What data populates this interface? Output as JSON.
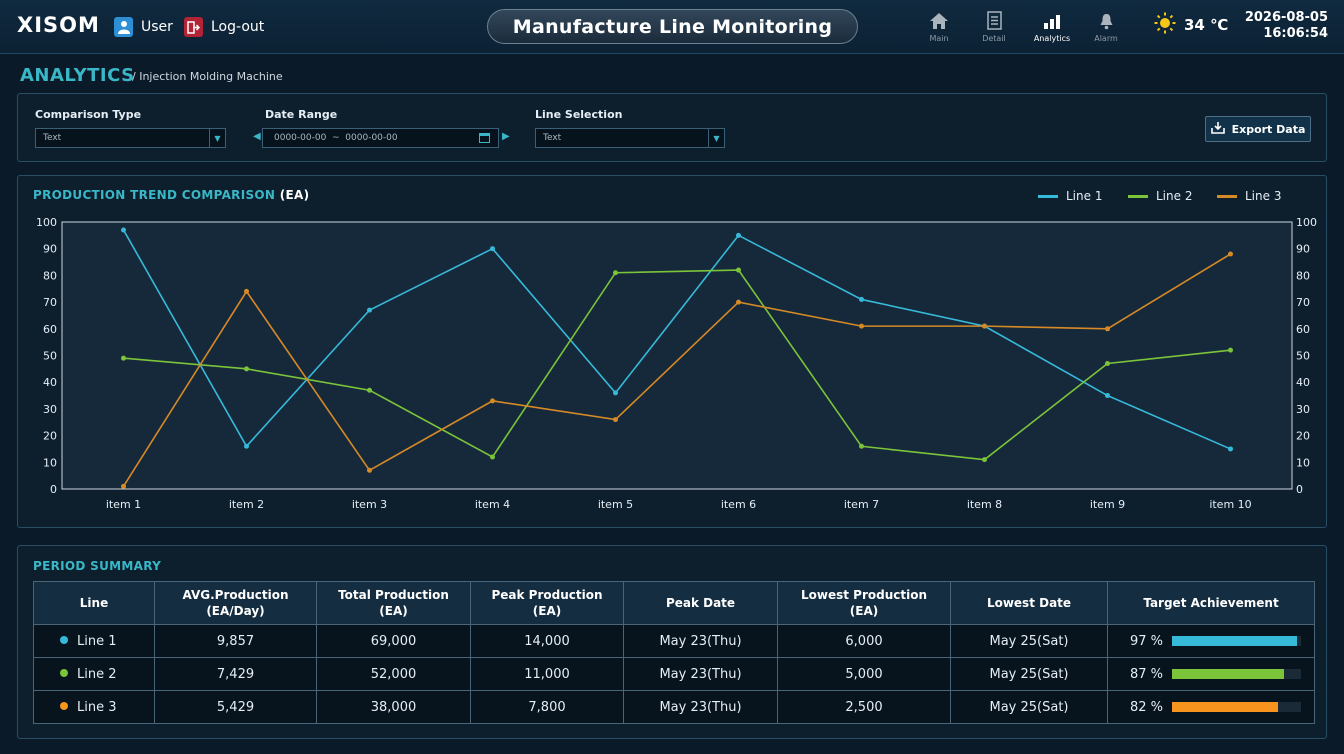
{
  "header": {
    "logo": "XISOM",
    "user_label": "User",
    "logout_label": "Log-out",
    "title": "Manufacture Line Monitoring",
    "nav": [
      {
        "label": "Main",
        "icon": "home-icon",
        "active": false
      },
      {
        "label": "Detail",
        "icon": "document-icon",
        "active": false
      },
      {
        "label": "Analytics",
        "icon": "bar-chart-icon",
        "active": true
      },
      {
        "label": "Alarm",
        "icon": "bell-icon",
        "active": false
      }
    ],
    "weather": {
      "icon": "sun-icon",
      "temperature": "34 ℃"
    },
    "date": "2026-08-05",
    "time": "16:06:54"
  },
  "page": {
    "title": "ANALYTICS",
    "subtitle": "/ Injection Molding Machine"
  },
  "filters": {
    "comparison_type": {
      "label": "Comparison Type",
      "value": "Text"
    },
    "date_range": {
      "label": "Date Range",
      "value": "0000-00-00  ~  0000-00-00"
    },
    "line_selection": {
      "label": "Line Selection",
      "value": "Text"
    },
    "export_label": "Export Data"
  },
  "trend": {
    "title": "PRODUCTION TREND COMPARISON",
    "unit": "(EA)"
  },
  "chart_data": {
    "type": "line",
    "title": "PRODUCTION TREND COMPARISON (EA)",
    "categories": [
      "item 1",
      "item 2",
      "item 3",
      "item 4",
      "item 5",
      "item 6",
      "item 7",
      "item 8",
      "item 9",
      "item 10"
    ],
    "ylim": [
      0,
      100
    ],
    "yticks": [
      0,
      10,
      20,
      30,
      40,
      50,
      60,
      70,
      80,
      90,
      100
    ],
    "y2ticks": [
      0,
      10,
      20,
      30,
      40,
      50,
      60,
      70,
      80,
      90,
      100
    ],
    "grid": false,
    "legend_position": "top-right",
    "series": [
      {
        "name": "Line 1",
        "color": "#37b9da",
        "values": [
          97,
          16,
          67,
          90,
          36,
          95,
          71,
          61,
          35,
          15
        ]
      },
      {
        "name": "Line 2",
        "color": "#7cc43a",
        "values": [
          49,
          45,
          37,
          12,
          81,
          82,
          16,
          11,
          47,
          52
        ]
      },
      {
        "name": "Line 3",
        "color": "#d68a26",
        "values": [
          1,
          74,
          7,
          33,
          26,
          70,
          61,
          61,
          60,
          88
        ]
      }
    ]
  },
  "summary": {
    "title": "PERIOD SUMMARY",
    "columns": [
      "Line",
      "AVG.Production\n(EA/Day)",
      "Total Production\n(EA)",
      "Peak Production\n(EA)",
      "Peak Date",
      "Lowest Production\n(EA)",
      "Lowest Date",
      "Target Achievement"
    ],
    "rows": [
      {
        "line": "Line 1",
        "color": "#37b9da",
        "avg": "9,857",
        "total": "69,000",
        "peak": "14,000",
        "peak_date": "May 23(Thu)",
        "lowest": "6,000",
        "lowest_date": "May 25(Sat)",
        "achievement": "97 %",
        "achievement_value": 97,
        "bar_color": "#37b9da"
      },
      {
        "line": "Line 2",
        "color": "#7cc43a",
        "avg": "7,429",
        "total": "52,000",
        "peak": "11,000",
        "peak_date": "May 23(Thu)",
        "lowest": "5,000",
        "lowest_date": "May 25(Sat)",
        "achievement": "87 %",
        "achievement_value": 87,
        "bar_color": "#7cc43a"
      },
      {
        "line": "Line 3",
        "color": "#f7941d",
        "avg": "5,429",
        "total": "38,000",
        "peak": "7,800",
        "peak_date": "May 23(Thu)",
        "lowest": "2,500",
        "lowest_date": "May 25(Sat)",
        "achievement": "82 %",
        "achievement_value": 82,
        "bar_color": "#f7941d"
      }
    ]
  }
}
